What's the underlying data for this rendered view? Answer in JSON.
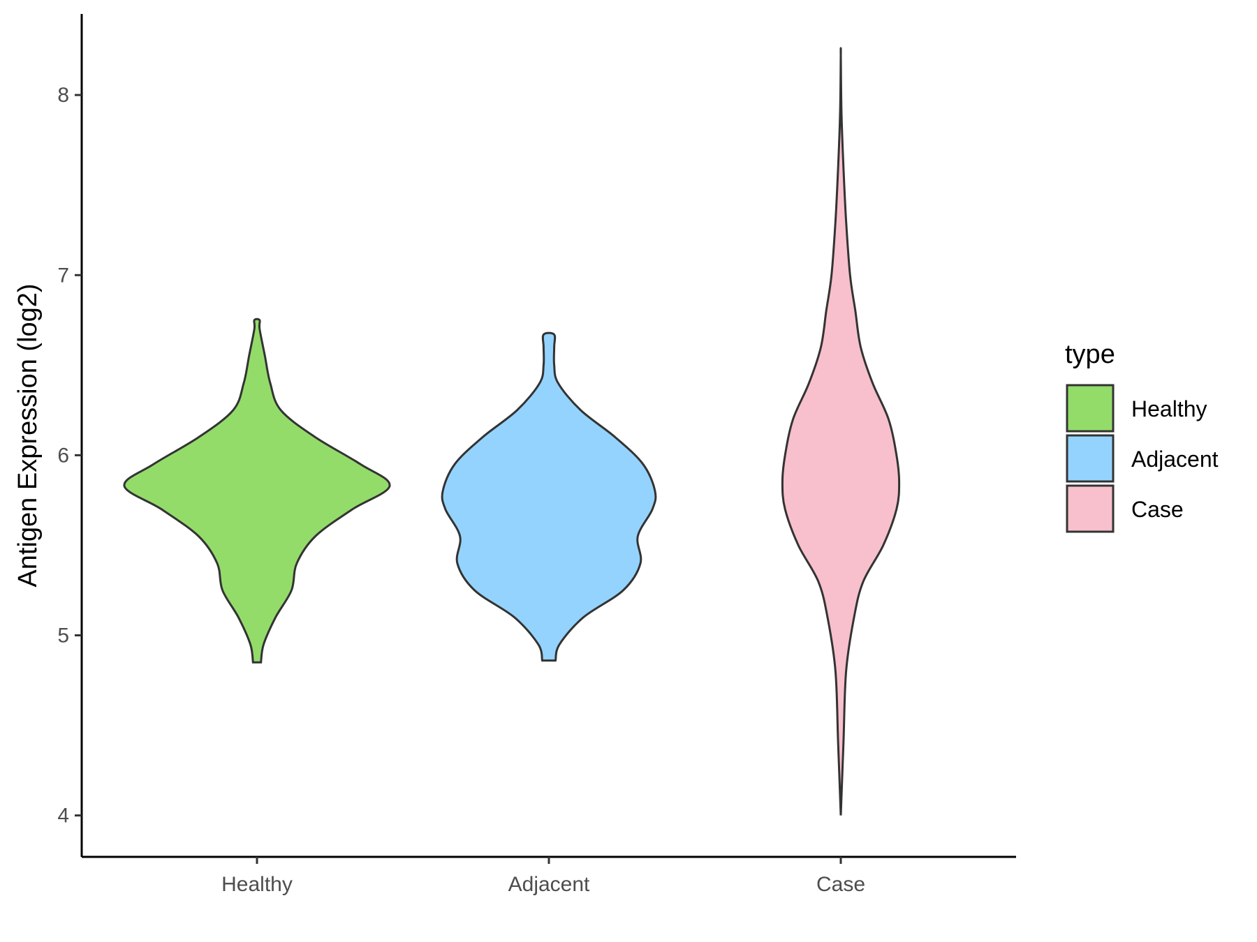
{
  "chart_data": {
    "type": "violin",
    "title": "",
    "xlabel": "",
    "ylabel": "Antigen Expression (log2)",
    "ylim": [
      3.77,
      8.45
    ],
    "yticks": [
      4,
      5,
      6,
      7,
      8
    ],
    "categories": [
      "Healthy",
      "Adjacent",
      "Case"
    ],
    "legend": {
      "title": "type",
      "position": "right",
      "entries": [
        {
          "label": "Healthy",
          "color": "#93dc6a"
        },
        {
          "label": "Adjacent",
          "color": "#94d3fd"
        },
        {
          "label": "Case",
          "color": "#f7c0cc"
        }
      ]
    },
    "series": [
      {
        "category": "Healthy",
        "color": "#93dc6a",
        "min": 4.85,
        "max": 6.75,
        "density_profile": [
          {
            "y": 4.85,
            "half_width": 0.03
          },
          {
            "y": 4.95,
            "half_width": 0.05
          },
          {
            "y": 5.1,
            "half_width": 0.14
          },
          {
            "y": 5.25,
            "half_width": 0.26
          },
          {
            "y": 5.4,
            "half_width": 0.3
          },
          {
            "y": 5.55,
            "half_width": 0.44
          },
          {
            "y": 5.7,
            "half_width": 0.72
          },
          {
            "y": 5.83,
            "half_width": 1.0
          },
          {
            "y": 5.95,
            "half_width": 0.78
          },
          {
            "y": 6.1,
            "half_width": 0.44
          },
          {
            "y": 6.25,
            "half_width": 0.18
          },
          {
            "y": 6.4,
            "half_width": 0.1
          },
          {
            "y": 6.55,
            "half_width": 0.06
          },
          {
            "y": 6.7,
            "half_width": 0.02
          },
          {
            "y": 6.75,
            "half_width": 0.02
          }
        ]
      },
      {
        "category": "Adjacent",
        "color": "#94d3fd",
        "min": 4.86,
        "max": 6.67,
        "density_profile": [
          {
            "y": 4.86,
            "half_width": 0.05
          },
          {
            "y": 4.95,
            "half_width": 0.08
          },
          {
            "y": 5.1,
            "half_width": 0.26
          },
          {
            "y": 5.25,
            "half_width": 0.56
          },
          {
            "y": 5.4,
            "half_width": 0.69
          },
          {
            "y": 5.55,
            "half_width": 0.67
          },
          {
            "y": 5.7,
            "half_width": 0.78
          },
          {
            "y": 5.8,
            "half_width": 0.8
          },
          {
            "y": 5.95,
            "half_width": 0.71
          },
          {
            "y": 6.1,
            "half_width": 0.5
          },
          {
            "y": 6.25,
            "half_width": 0.24
          },
          {
            "y": 6.4,
            "half_width": 0.07
          },
          {
            "y": 6.5,
            "half_width": 0.04
          },
          {
            "y": 6.6,
            "half_width": 0.04
          },
          {
            "y": 6.67,
            "half_width": 0.04
          }
        ]
      },
      {
        "category": "Case",
        "color": "#f7c0cc",
        "min": 4.0,
        "max": 8.22,
        "density_profile": [
          {
            "y": 4.0,
            "half_width": 0.0
          },
          {
            "y": 4.4,
            "half_width": 0.02
          },
          {
            "y": 4.8,
            "half_width": 0.04
          },
          {
            "y": 5.1,
            "half_width": 0.1
          },
          {
            "y": 5.3,
            "half_width": 0.17
          },
          {
            "y": 5.5,
            "half_width": 0.32
          },
          {
            "y": 5.7,
            "half_width": 0.42
          },
          {
            "y": 5.85,
            "half_width": 0.44
          },
          {
            "y": 6.0,
            "half_width": 0.42
          },
          {
            "y": 6.2,
            "half_width": 0.36
          },
          {
            "y": 6.4,
            "half_width": 0.24
          },
          {
            "y": 6.6,
            "half_width": 0.15
          },
          {
            "y": 6.8,
            "half_width": 0.11
          },
          {
            "y": 7.0,
            "half_width": 0.07
          },
          {
            "y": 7.3,
            "half_width": 0.04
          },
          {
            "y": 7.6,
            "half_width": 0.02
          },
          {
            "y": 7.9,
            "half_width": 0.005
          },
          {
            "y": 8.22,
            "half_width": 0.0
          }
        ]
      }
    ]
  }
}
